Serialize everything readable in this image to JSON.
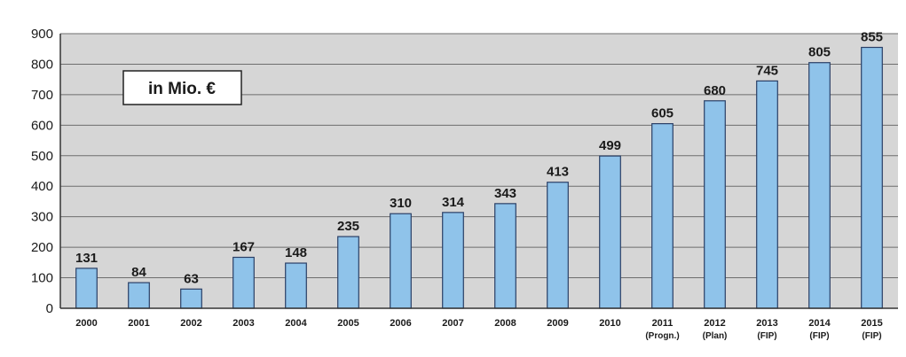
{
  "chart_data": {
    "type": "bar",
    "title": "",
    "unit_box": "in Mio. €",
    "categories": [
      [
        "2000"
      ],
      [
        "2001"
      ],
      [
        "2002"
      ],
      [
        "2003"
      ],
      [
        "2004"
      ],
      [
        "2005"
      ],
      [
        "2006"
      ],
      [
        "2007"
      ],
      [
        "2008"
      ],
      [
        "2009"
      ],
      [
        "2010"
      ],
      [
        "2011",
        "(Progn.)"
      ],
      [
        "2012",
        "(Plan)"
      ],
      [
        "2013",
        "(FIP)"
      ],
      [
        "2014",
        "(FIP)"
      ],
      [
        "2015",
        "(FIP)"
      ]
    ],
    "values": [
      131,
      84,
      63,
      167,
      148,
      235,
      310,
      314,
      343,
      413,
      499,
      605,
      680,
      745,
      805,
      855
    ],
    "data_labels": [
      "131",
      "84",
      "63",
      "167",
      "148",
      "235",
      "310",
      "314",
      "343",
      "413",
      "499",
      "605",
      "680",
      "745",
      "805",
      "855"
    ],
    "ylim": [
      0,
      900
    ],
    "yticks": [
      0,
      100,
      200,
      300,
      400,
      500,
      600,
      700,
      800,
      900
    ],
    "xlabel": "",
    "ylabel": "",
    "grid": true,
    "colors": {
      "bar_fill": "#8fc3ea",
      "bar_stroke": "#2a3f66",
      "plot_background": "#d6d6d6",
      "gridline": "#6e6e6e",
      "axis": "#333333",
      "text": "#1a1a1a"
    }
  }
}
